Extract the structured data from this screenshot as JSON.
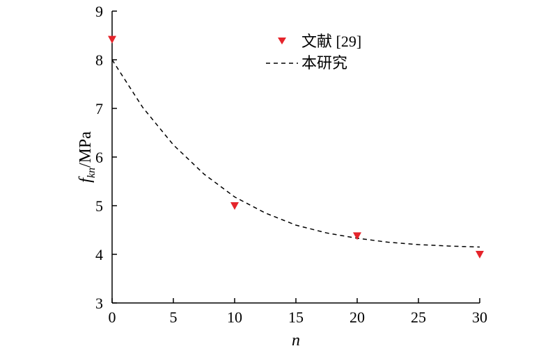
{
  "chart_data": {
    "type": "scatter",
    "xlabel": "n",
    "ylabel": {
      "base": "f",
      "subscript": "kn",
      "suffix": "/MPa"
    },
    "xlim": [
      0,
      30
    ],
    "ylim": [
      3,
      9
    ],
    "xticks": [
      0,
      5,
      10,
      15,
      20,
      25,
      30
    ],
    "yticks": [
      3,
      4,
      5,
      6,
      7,
      8,
      9
    ],
    "grid": false,
    "legend_position": "top-center",
    "series": [
      {
        "name": "文献 [29]",
        "kind": "marker",
        "marker": "triangle-down",
        "color": "#e5242b",
        "points": [
          {
            "x": 0,
            "y": 8.42
          },
          {
            "x": 10,
            "y": 5.0
          },
          {
            "x": 20,
            "y": 4.38
          },
          {
            "x": 30,
            "y": 4.0
          }
        ]
      },
      {
        "name": "本研究",
        "kind": "line",
        "line_style": "dashed",
        "color": "#000000",
        "points": [
          {
            "x": 0,
            "y": 8.0
          },
          {
            "x": 2.5,
            "y": 7.02
          },
          {
            "x": 5,
            "y": 6.25
          },
          {
            "x": 7.5,
            "y": 5.65
          },
          {
            "x": 10,
            "y": 5.18
          },
          {
            "x": 12.5,
            "y": 4.85
          },
          {
            "x": 15,
            "y": 4.6
          },
          {
            "x": 17.5,
            "y": 4.44
          },
          {
            "x": 20,
            "y": 4.33
          },
          {
            "x": 22.5,
            "y": 4.25
          },
          {
            "x": 25,
            "y": 4.2
          },
          {
            "x": 27.5,
            "y": 4.17
          },
          {
            "x": 30,
            "y": 4.15
          }
        ]
      }
    ]
  }
}
